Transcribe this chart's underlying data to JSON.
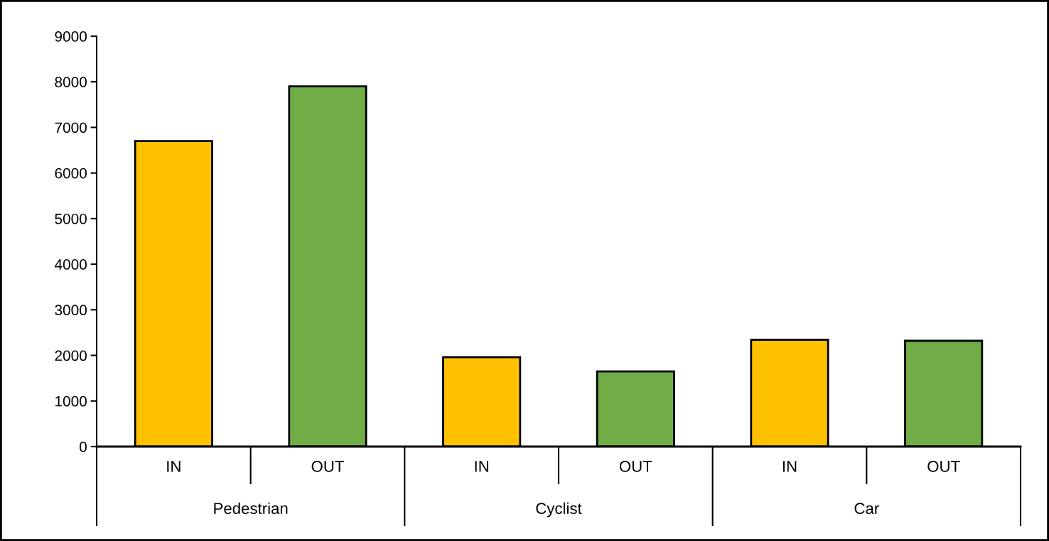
{
  "chart_data": {
    "type": "bar",
    "categories": [
      "IN",
      "OUT",
      "IN",
      "OUT",
      "IN",
      "OUT"
    ],
    "values": [
      6700,
      7900,
      1960,
      1650,
      2340,
      2320
    ],
    "colors": [
      "#ffc000",
      "#70ad47",
      "#ffc000",
      "#70ad47",
      "#ffc000",
      "#70ad47"
    ],
    "annotations": [
      "Pedestrian",
      "Cyclist",
      "Car"
    ],
    "ylim": [
      0,
      9000
    ],
    "yticks": [
      0,
      1000,
      2000,
      3000,
      4000,
      5000,
      6000,
      7000,
      8000,
      9000
    ],
    "grid": false,
    "legend": false
  }
}
